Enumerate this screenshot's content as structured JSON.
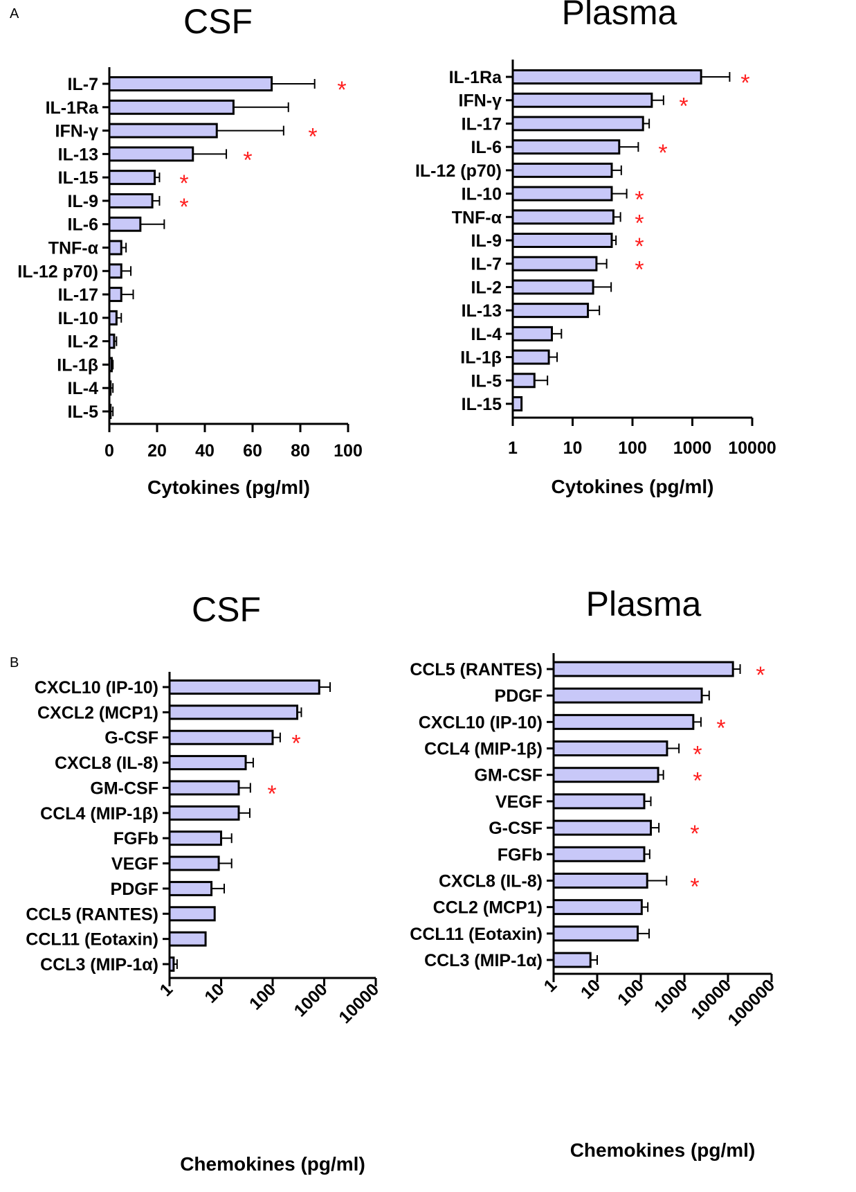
{
  "figure": {
    "label_a": "A",
    "label_b": "B",
    "bar_color": "#c8c8f8",
    "star_color": "#ff2020"
  },
  "chart_data": [
    {
      "type": "bar",
      "orientation": "horizontal",
      "title": "CSF",
      "xlabel": "Cytokines (pg/ml)",
      "xscale": "linear",
      "xlim": [
        0,
        100
      ],
      "xticks": [
        "0",
        "20",
        "40",
        "60",
        "80",
        "100"
      ],
      "categories": [
        "IL-7",
        "IL-1Ra",
        "IFN-γ",
        "IL-13",
        "IL-15",
        "IL-9",
        "IL-6",
        "TNF-α",
        "IL-12 p70)",
        "IL-17",
        "IL-10",
        "IL-2",
        "IL-1β",
        "IL-4",
        "IL-5"
      ],
      "values": [
        68,
        52,
        45,
        35,
        19,
        18,
        13,
        5,
        5,
        5,
        3,
        2,
        1,
        0.5,
        0.5
      ],
      "errors": [
        18,
        23,
        28,
        14,
        2,
        3,
        10,
        2,
        4,
        5,
        2,
        1,
        0.5,
        1,
        1
      ],
      "significant": [
        true,
        false,
        true,
        true,
        true,
        true,
        false,
        false,
        false,
        false,
        false,
        false,
        false,
        false,
        false
      ],
      "star": "*"
    },
    {
      "type": "bar",
      "orientation": "horizontal",
      "title": "Plasma",
      "xlabel": "Cytokines (pg/ml)",
      "xscale": "log",
      "xlim": [
        1,
        10000
      ],
      "xticks": [
        "1",
        "10",
        "100",
        "1000",
        "10000"
      ],
      "categories": [
        "IL-1Ra",
        "IFN-γ",
        "IL-17",
        "IL-6",
        "IL-12 (p70)",
        "IL-10",
        "TNF-α",
        "IL-9",
        "IL-7",
        "IL-2",
        "IL-13",
        "IL-4",
        "IL-1β",
        "IL-5",
        "IL-15"
      ],
      "values": [
        1400,
        210,
        150,
        60,
        45,
        45,
        48,
        45,
        25,
        22,
        18,
        4.5,
        4,
        2.3,
        1.4
      ],
      "errors": [
        2800,
        120,
        40,
        65,
        20,
        35,
        15,
        8,
        12,
        22,
        10,
        2,
        1.5,
        1.5,
        0
      ],
      "significant": [
        true,
        true,
        false,
        true,
        false,
        true,
        true,
        true,
        true,
        false,
        false,
        false,
        false,
        false,
        false
      ],
      "star": "*"
    },
    {
      "type": "bar",
      "orientation": "horizontal",
      "title": "CSF",
      "xlabel": "Chemokines (pg/ml)",
      "xscale": "log",
      "xlim": [
        1,
        10000
      ],
      "xticks": [
        "1",
        "10",
        "100",
        "1000",
        "10000"
      ],
      "categories": [
        "CXCL10 (IP-10)",
        "CXCL2 (MCP1)",
        "G-CSF",
        "CXCL8 (IL-8)",
        "GM-CSF",
        "CCL4 (MIP-1β)",
        "FGFb",
        "VEGF",
        "PDGF",
        "CCL5 (RANTES)",
        "CCL11 (Eotaxin)",
        "CCL3 (MIP-1α)"
      ],
      "values": [
        800,
        300,
        100,
        30,
        22,
        22,
        10,
        9,
        6.5,
        7.5,
        5,
        1.2
      ],
      "errors": [
        500,
        60,
        40,
        12,
        15,
        14,
        6,
        7,
        5,
        0,
        0,
        0.2
      ],
      "significant": [
        false,
        false,
        true,
        false,
        true,
        false,
        false,
        false,
        false,
        false,
        false,
        false
      ],
      "star": "*"
    },
    {
      "type": "bar",
      "orientation": "horizontal",
      "title": "Plasma",
      "xlabel": "Chemokines (pg/ml)",
      "xscale": "log",
      "xlim": [
        1,
        100000
      ],
      "xticks": [
        "1",
        "10",
        "100",
        "1000",
        "10000",
        "100000"
      ],
      "categories": [
        "CCL5 (RANTES)",
        "PDGF",
        "CXCL10 (IP-10)",
        "CCL4 (MIP-1β)",
        "GM-CSF",
        "VEGF",
        "G-CSF",
        "FGFb",
        "CXCL8 (IL-8)",
        "CCL2 (MCP1)",
        "CCL11 (Eotaxin)",
        "CCL3 (MIP-1α)"
      ],
      "values": [
        13000,
        2500,
        1600,
        400,
        250,
        120,
        170,
        120,
        140,
        105,
        85,
        7
      ],
      "errors": [
        6000,
        1200,
        800,
        350,
        80,
        50,
        90,
        40,
        250,
        40,
        70,
        3
      ],
      "significant": [
        true,
        false,
        true,
        true,
        true,
        false,
        true,
        false,
        true,
        false,
        false,
        false
      ],
      "star": "*"
    }
  ]
}
